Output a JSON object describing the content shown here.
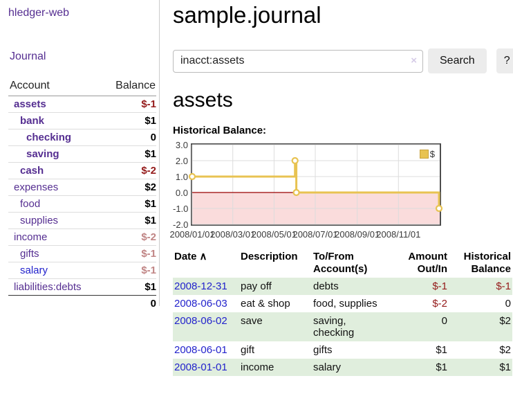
{
  "app": {
    "brand": "hledger-web"
  },
  "colors": {
    "purple": "#552e91",
    "blue": "#2222cc",
    "neg-strong": "#941a1a",
    "neg-soft": "#c08585",
    "row-green": "#e0eedd",
    "gold": "#e8c352",
    "gold-border": "#c9a23a",
    "pink": "#fadcdc",
    "zero": "#990000",
    "grid": "#dcdcdc",
    "chart-border": "#4d4d4d"
  },
  "sidebar": {
    "nav_journal": "Journal",
    "accounts": {
      "header_account": "Account",
      "header_balance": "Balance",
      "rows": [
        {
          "name": "assets",
          "indent": 1,
          "bold": true,
          "link_tone": "purple",
          "balance": "$-1",
          "tone": "neg-strong"
        },
        {
          "name": "bank",
          "indent": 2,
          "bold": true,
          "link_tone": "purple",
          "balance": "$1",
          "tone": "normal"
        },
        {
          "name": "checking",
          "indent": 3,
          "bold": true,
          "link_tone": "purple",
          "balance": "0",
          "tone": "normal"
        },
        {
          "name": "saving",
          "indent": 3,
          "bold": true,
          "link_tone": "purple",
          "balance": "$1",
          "tone": "normal"
        },
        {
          "name": "cash",
          "indent": 2,
          "bold": true,
          "link_tone": "purple",
          "balance": "$-2",
          "tone": "neg-strong"
        },
        {
          "name": "expenses",
          "indent": 1,
          "bold": false,
          "link_tone": "purple",
          "balance": "$2",
          "tone": "normal"
        },
        {
          "name": "food",
          "indent": 2,
          "bold": false,
          "link_tone": "purple",
          "balance": "$1",
          "tone": "normal"
        },
        {
          "name": "supplies",
          "indent": 2,
          "bold": false,
          "link_tone": "purple",
          "balance": "$1",
          "tone": "normal"
        },
        {
          "name": "income",
          "indent": 1,
          "bold": false,
          "link_tone": "purple",
          "balance": "$-2",
          "tone": "neg-soft"
        },
        {
          "name": "gifts",
          "indent": 2,
          "bold": false,
          "link_tone": "purple",
          "balance": "$-1",
          "tone": "neg-soft"
        },
        {
          "name": "salary",
          "indent": 2,
          "bold": false,
          "link_tone": "blue",
          "balance": "$-1",
          "tone": "neg-soft"
        },
        {
          "name": "liabilities:debts",
          "indent": 1,
          "bold": false,
          "link_tone": "purple",
          "balance": "$1",
          "tone": "normal"
        }
      ],
      "total": "0"
    }
  },
  "main": {
    "title": "sample.journal",
    "search": {
      "value": "inacct:assets",
      "clear_icon": "×",
      "button_label": "Search",
      "help_label": "?"
    },
    "heading": "assets",
    "chart_label": "Historical Balance:"
  },
  "chart_data": {
    "type": "line",
    "step": true,
    "title": "Historical Balance",
    "series": [
      {
        "name": "$",
        "color": "#e8c352",
        "points": [
          [
            "2008-01-01",
            1
          ],
          [
            "2008-06-01",
            2
          ],
          [
            "2008-06-03",
            0
          ],
          [
            "2008-12-31",
            -1
          ]
        ]
      }
    ],
    "x_range": [
      "2008-01-01",
      "2009-01-01"
    ],
    "ylim": [
      -2,
      3
    ],
    "y_ticks": [
      "3.0",
      "2.0",
      "1.0",
      "0.0",
      "-1.0",
      "-2.0"
    ],
    "x_ticks": [
      {
        "label": "2008/01/01",
        "date": "2008-01-01"
      },
      {
        "label": "2008/03/01",
        "date": "2008-03-01"
      },
      {
        "label": "2008/05/01",
        "date": "2008-05-01"
      },
      {
        "label": "2008/07/01",
        "date": "2008-07-01"
      },
      {
        "label": "2008/09/01",
        "date": "2008-09-01"
      },
      {
        "label": "2008/11/01",
        "date": "2008-11-01"
      }
    ],
    "legend": {
      "label": "$",
      "position": "top-right"
    },
    "grid": true,
    "negative_region_fill": "#fadcdc",
    "zero_line_color": "#990000"
  },
  "transactions": {
    "headers": {
      "date": "Date",
      "description": "Description",
      "accounts": "To/From Account(s)",
      "amount": "Amount Out/In",
      "balance": "Historical Balance"
    },
    "sort_indicator": "∧",
    "rows": [
      {
        "date": "2008-12-31",
        "description": "pay off",
        "accounts": "debts",
        "amount": "$-1",
        "amount_negative": true,
        "balance": "$-1",
        "balance_negative": true
      },
      {
        "date": "2008-06-03",
        "description": "eat & shop",
        "accounts": "food, supplies",
        "amount": "$-2",
        "amount_negative": true,
        "balance": "0",
        "balance_negative": false
      },
      {
        "date": "2008-06-02",
        "description": "save",
        "accounts": "saving, checking",
        "amount": "0",
        "amount_negative": false,
        "balance": "$2",
        "balance_negative": false
      },
      {
        "date": "2008-06-01",
        "description": "gift",
        "accounts": "gifts",
        "amount": "$1",
        "amount_negative": false,
        "balance": "$2",
        "balance_negative": false
      },
      {
        "date": "2008-01-01",
        "description": "income",
        "accounts": "salary",
        "amount": "$1",
        "amount_negative": false,
        "balance": "$1",
        "balance_negative": false
      }
    ]
  }
}
